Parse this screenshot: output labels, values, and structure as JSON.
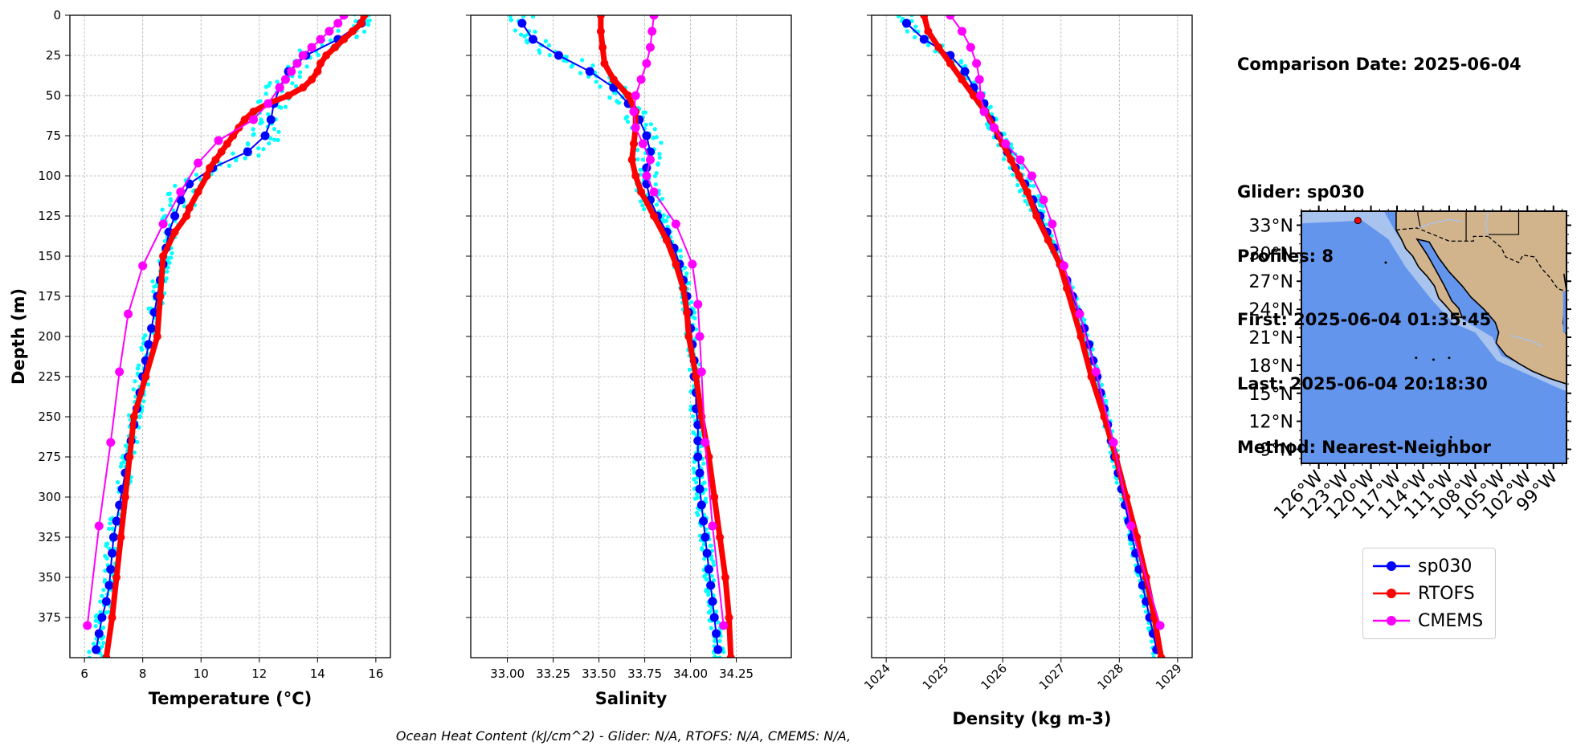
{
  "info": {
    "comparison_date": "Comparison Date: 2025-06-04",
    "glider": "Glider: sp030",
    "profiles": "Profiles: 8",
    "first": "First: 2025-06-04 01:35:45",
    "last": "Last: 2025-06-04 20:18:30",
    "method": "Method: Nearest-Neighbor"
  },
  "footer": "Ocean Heat Content (kJ/cm^2) - Glider: N/A,  RTOFS: N/A,  CMEMS: N/A,",
  "legend": [
    {
      "name": "sp030",
      "color": "#0000ff"
    },
    {
      "name": "RTOFS",
      "color": "#ff0000"
    },
    {
      "name": "CMEMS",
      "color": "#ff00ff"
    }
  ],
  "colors": {
    "glider_obs": "#00ffff",
    "sp030": "#0000ff",
    "rtofs": "#ff0000",
    "cmems": "#ff00ff",
    "ocean": "#6495ed",
    "shelf": "#a7c3ee",
    "land": "#d2b48c"
  },
  "chart_data": [
    {
      "type": "line",
      "xlabel": "Temperature (°C)",
      "ylabel": "Depth (m)",
      "xlim": [
        5.5,
        16.5
      ],
      "ylim": [
        400,
        0
      ],
      "xticks": [
        6,
        8,
        10,
        12,
        14,
        16
      ],
      "yticks": [
        0,
        25,
        50,
        75,
        100,
        125,
        150,
        175,
        200,
        225,
        250,
        275,
        300,
        325,
        350,
        375
      ],
      "grid": true,
      "series": [
        {
          "name": "sp030",
          "depth": [
            5,
            15,
            25,
            35,
            45,
            55,
            65,
            75,
            85,
            95,
            105,
            115,
            125,
            135,
            145,
            155,
            165,
            175,
            185,
            195,
            205,
            215,
            225,
            235,
            245,
            255,
            265,
            275,
            285,
            295,
            305,
            315,
            325,
            335,
            345,
            355,
            365,
            375,
            385,
            395
          ],
          "values": [
            15.5,
            14.7,
            13.6,
            13.0,
            12.7,
            12.5,
            12.4,
            12.2,
            11.6,
            10.4,
            9.6,
            9.3,
            9.1,
            8.9,
            8.8,
            8.7,
            8.6,
            8.5,
            8.4,
            8.3,
            8.2,
            8.1,
            8.0,
            7.9,
            7.8,
            7.7,
            7.6,
            7.5,
            7.4,
            7.3,
            7.2,
            7.1,
            7.0,
            6.95,
            6.9,
            6.85,
            6.75,
            6.6,
            6.5,
            6.4
          ]
        },
        {
          "name": "RTOFS",
          "depth": [
            0,
            5,
            10,
            15,
            20,
            25,
            30,
            35,
            40,
            45,
            50,
            55,
            60,
            65,
            70,
            75,
            80,
            85,
            90,
            95,
            100,
            110,
            120,
            125,
            135,
            150,
            175,
            200,
            225,
            250,
            275,
            300,
            325,
            350,
            375,
            400
          ],
          "values": [
            15.6,
            15.5,
            15.2,
            14.9,
            14.6,
            14.3,
            14.1,
            14.0,
            13.8,
            13.5,
            13.0,
            12.3,
            11.8,
            11.5,
            11.3,
            11.1,
            10.9,
            10.7,
            10.5,
            10.3,
            10.2,
            9.9,
            9.6,
            9.5,
            9.1,
            8.7,
            8.6,
            8.5,
            8.1,
            7.7,
            7.55,
            7.4,
            7.25,
            7.1,
            6.95,
            6.75
          ]
        },
        {
          "name": "CMEMS",
          "depth": [
            0,
            5,
            10,
            15,
            20,
            25,
            30,
            35,
            40,
            45,
            55,
            65,
            78,
            92,
            110,
            130,
            156,
            186,
            222,
            266,
            318,
            380
          ],
          "values": [
            14.9,
            14.7,
            14.4,
            14.1,
            13.8,
            13.5,
            13.3,
            13.1,
            12.9,
            12.7,
            12.3,
            11.8,
            10.6,
            9.9,
            9.3,
            8.7,
            8.0,
            7.5,
            7.2,
            6.9,
            6.5,
            6.1
          ]
        }
      ]
    },
    {
      "type": "line",
      "xlabel": "Salinity",
      "xlim": [
        32.8,
        34.55
      ],
      "ylim": [
        400,
        0
      ],
      "xticks": [
        33.0,
        33.25,
        33.5,
        33.75,
        34.0,
        34.25
      ],
      "xtick_labels": [
        "33.00",
        "33.25",
        "33.50",
        "33.75",
        "34.00",
        "34.25"
      ],
      "grid": true,
      "series": [
        {
          "name": "sp030",
          "depth": [
            5,
            15,
            25,
            35,
            45,
            55,
            65,
            75,
            85,
            95,
            105,
            115,
            125,
            135,
            145,
            155,
            165,
            175,
            185,
            195,
            205,
            215,
            225,
            235,
            245,
            255,
            265,
            275,
            285,
            295,
            305,
            315,
            325,
            335,
            345,
            355,
            365,
            375,
            385,
            395
          ],
          "values": [
            33.08,
            33.14,
            33.28,
            33.45,
            33.58,
            33.66,
            33.72,
            33.76,
            33.78,
            33.76,
            33.76,
            33.78,
            33.82,
            33.87,
            33.91,
            33.94,
            33.96,
            33.98,
            33.99,
            34.0,
            34.01,
            34.02,
            34.02,
            34.03,
            34.03,
            34.04,
            34.04,
            34.04,
            34.05,
            34.05,
            34.06,
            34.07,
            34.08,
            34.09,
            34.1,
            34.11,
            34.12,
            34.13,
            34.14,
            34.15
          ]
        },
        {
          "name": "RTOFS",
          "depth": [
            0,
            10,
            20,
            30,
            40,
            50,
            60,
            70,
            80,
            90,
            100,
            110,
            125,
            140,
            155,
            170,
            185,
            200,
            225,
            250,
            275,
            300,
            325,
            350,
            375,
            400
          ],
          "values": [
            33.51,
            33.51,
            33.52,
            33.53,
            33.58,
            33.66,
            33.7,
            33.7,
            33.69,
            33.68,
            33.7,
            33.73,
            33.8,
            33.87,
            33.92,
            33.96,
            33.98,
            33.99,
            34.03,
            34.06,
            34.1,
            34.13,
            34.16,
            34.19,
            34.21,
            34.22
          ]
        },
        {
          "name": "CMEMS",
          "depth": [
            0,
            10,
            20,
            30,
            40,
            50,
            60,
            70,
            80,
            90,
            100,
            110,
            130,
            155,
            180,
            200,
            222,
            266,
            318,
            380
          ],
          "values": [
            33.8,
            33.79,
            33.78,
            33.76,
            33.73,
            33.7,
            33.69,
            33.7,
            33.74,
            33.78,
            33.76,
            33.8,
            33.92,
            34.01,
            34.04,
            34.05,
            34.06,
            34.08,
            34.12,
            34.18
          ]
        }
      ]
    },
    {
      "type": "line",
      "xlabel": "Density (kg m-3)",
      "xlim": [
        1023.75,
        1029.25
      ],
      "ylim": [
        400,
        0
      ],
      "xticks": [
        1024,
        1025,
        1026,
        1027,
        1028,
        1029
      ],
      "grid": true,
      "series": [
        {
          "name": "sp030",
          "depth": [
            5,
            15,
            25,
            35,
            45,
            55,
            65,
            75,
            85,
            95,
            105,
            115,
            125,
            135,
            145,
            155,
            165,
            175,
            185,
            195,
            205,
            215,
            225,
            235,
            245,
            255,
            265,
            275,
            285,
            295,
            305,
            315,
            325,
            335,
            345,
            355,
            365,
            375,
            385,
            395
          ],
          "values": [
            1024.35,
            1024.65,
            1025.1,
            1025.35,
            1025.5,
            1025.68,
            1025.8,
            1025.93,
            1026.08,
            1026.22,
            1026.38,
            1026.52,
            1026.64,
            1026.76,
            1026.88,
            1027.0,
            1027.1,
            1027.2,
            1027.3,
            1027.4,
            1027.48,
            1027.55,
            1027.62,
            1027.68,
            1027.74,
            1027.8,
            1027.86,
            1027.92,
            1027.98,
            1028.04,
            1028.1,
            1028.16,
            1028.22,
            1028.28,
            1028.34,
            1028.4,
            1028.46,
            1028.52,
            1028.58,
            1028.64
          ]
        },
        {
          "name": "RTOFS",
          "depth": [
            0,
            10,
            20,
            30,
            40,
            50,
            60,
            70,
            80,
            90,
            100,
            110,
            125,
            140,
            155,
            170,
            200,
            225,
            250,
            275,
            300,
            325,
            350,
            375,
            400
          ],
          "values": [
            1024.65,
            1024.72,
            1024.9,
            1025.1,
            1025.3,
            1025.5,
            1025.7,
            1025.86,
            1026.0,
            1026.14,
            1026.28,
            1026.42,
            1026.58,
            1026.78,
            1026.98,
            1027.1,
            1027.34,
            1027.52,
            1027.74,
            1027.94,
            1028.12,
            1028.3,
            1028.46,
            1028.6,
            1028.72
          ]
        },
        {
          "name": "CMEMS",
          "depth": [
            0,
            10,
            20,
            30,
            40,
            50,
            60,
            70,
            80,
            90,
            100,
            115,
            130,
            156,
            186,
            222,
            266,
            318,
            380
          ],
          "values": [
            1025.1,
            1025.3,
            1025.45,
            1025.55,
            1025.6,
            1025.62,
            1025.68,
            1025.85,
            1026.05,
            1026.3,
            1026.5,
            1026.7,
            1026.85,
            1027.05,
            1027.32,
            1027.6,
            1027.9,
            1028.2,
            1028.7
          ]
        }
      ]
    }
  ],
  "map": {
    "lat_labels": [
      "33°N",
      "30°N",
      "27°N",
      "24°N",
      "21°N",
      "18°N",
      "15°N",
      "12°N",
      "9°N"
    ],
    "lon_labels": [
      "126°W",
      "123°W",
      "120°W",
      "117°W",
      "114°W",
      "111°W",
      "108°W",
      "105°W",
      "102°W",
      "99°W"
    ],
    "glider_position": {
      "lat": 33.5,
      "lon": -121.5
    }
  }
}
